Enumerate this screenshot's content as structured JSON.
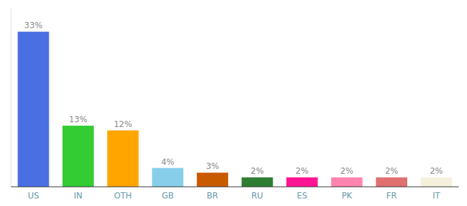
{
  "chart_data": {
    "type": "bar",
    "categories": [
      "US",
      "IN",
      "OTH",
      "GB",
      "BR",
      "RU",
      "ES",
      "PK",
      "FR",
      "IT"
    ],
    "values": [
      33,
      13,
      12,
      4,
      3,
      2,
      2,
      2,
      2,
      2
    ],
    "value_labels": [
      "33%",
      "13%",
      "12%",
      "4%",
      "3%",
      "2%",
      "2%",
      "2%",
      "2%",
      "2%"
    ],
    "colors": [
      "#4a6fe3",
      "#33cc33",
      "#ffa500",
      "#87ceeb",
      "#c85a00",
      "#2e7d32",
      "#ff1493",
      "#ff85b0",
      "#e07070",
      "#f5f0dc"
    ],
    "ylim": [
      0,
      38
    ],
    "data_labels": true,
    "tick_labels": "x"
  }
}
